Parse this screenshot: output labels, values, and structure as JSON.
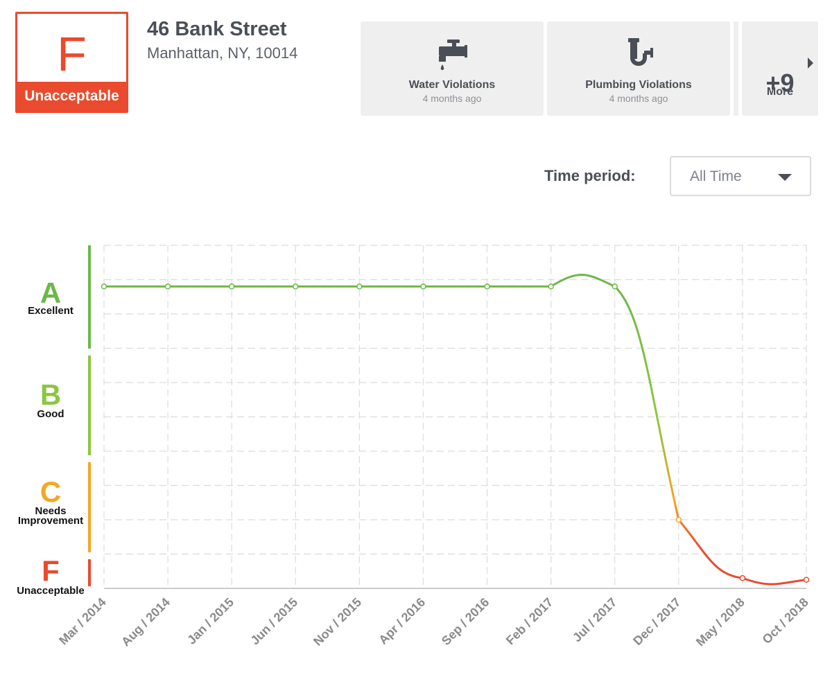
{
  "grade": {
    "letter": "F",
    "label": "Unacceptable",
    "color": "#ea4a2d"
  },
  "address": {
    "street": "46 Bank Street",
    "city_line": "Manhattan, NY, 10014"
  },
  "violation_cards": [
    {
      "title": "Water Violations",
      "time": "4 months ago",
      "icon": "faucet-icon"
    },
    {
      "title": "Plumbing Violations",
      "time": "4 months ago",
      "icon": "pipe-icon"
    }
  ],
  "more": {
    "count": "+9",
    "label": "More"
  },
  "time_period": {
    "label": "Time period:",
    "selected": "All Time"
  },
  "colors": {
    "A": "#6bb847",
    "B": "#8cc63f",
    "C": "#f5a623",
    "F": "#ea4a2d",
    "grid": "#dddddd"
  },
  "chart_data": {
    "type": "line",
    "title": "",
    "xlabel": "",
    "ylabel": "",
    "grid": true,
    "y_grades": [
      {
        "letter": "A",
        "label": "Excellent",
        "color": "#6bb847"
      },
      {
        "letter": "B",
        "label": "Good",
        "color": "#8cc63f"
      },
      {
        "letter": "C",
        "label": "Needs Improvement",
        "color": "#f5a623"
      },
      {
        "letter": "F",
        "label": "Unacceptable",
        "color": "#ea4a2d"
      }
    ],
    "ylim": [
      0,
      100
    ],
    "x": [
      "Mar / 2014",
      "Aug / 2014",
      "Jan / 2015",
      "Jun / 2015",
      "Nov / 2015",
      "Apr / 2016",
      "Sep / 2016",
      "Feb / 2017",
      "Jul / 2017",
      "Dec / 2017",
      "May / 2018",
      "Oct / 2018"
    ],
    "values": [
      88,
      88,
      88,
      88,
      88,
      88,
      88,
      88,
      88,
      20,
      3,
      2.5
    ]
  }
}
